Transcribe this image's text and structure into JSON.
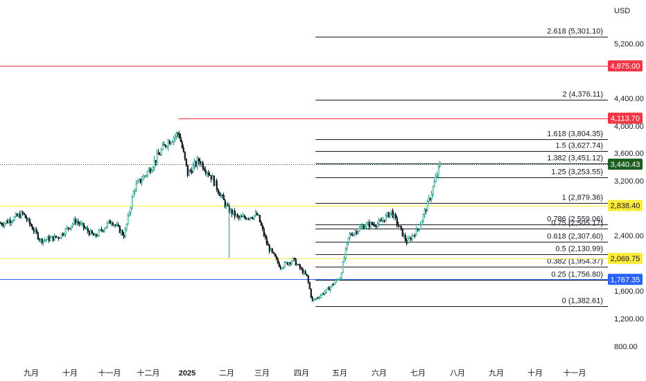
{
  "chart_data": {
    "type": "candlestick",
    "currency": "USD",
    "y_axis": {
      "ticks": [
        "5,200.00",
        "4,400.00",
        "4,000.00",
        "3,600.00",
        "3,200.00",
        "2,400.00",
        "1,600.00",
        "1,200.00",
        "800.00"
      ],
      "tick_values": [
        5200,
        4400,
        4000,
        3600,
        3200,
        2400,
        1600,
        1200,
        800
      ]
    },
    "x_axis": {
      "labels": [
        "九月",
        "十月",
        "十一月",
        "十二月",
        "2025",
        "二月",
        "三月",
        "四月",
        "五月",
        "六月",
        "七月",
        "八月",
        "九月",
        "十月",
        "十一月"
      ],
      "bold_label": "2025"
    },
    "horizontal_levels": [
      {
        "price": 4875.0,
        "label": "4,875.00",
        "color": "#f23645",
        "text_color": "#ffffff"
      },
      {
        "price": 4113.7,
        "label": "4,113.70",
        "color": "#f23645",
        "text_color": "#ffffff"
      },
      {
        "price": 2838.4,
        "label": "2,838.40",
        "color": "#ffeb3b",
        "text_color": "#131722"
      },
      {
        "price": 2069.75,
        "label": "2,069.75",
        "color": "#ffeb3b",
        "text_color": "#131722"
      },
      {
        "price": 1767.35,
        "label": "1,767.35",
        "color": "#2962ff",
        "text_color": "#ffffff"
      }
    ],
    "last_price": {
      "price": 3440.43,
      "label": "3,440.43",
      "color": "#1b5e20",
      "text_color": "#ffffff"
    },
    "fibonacci": [
      {
        "ratio": "2.618",
        "price": 5301.1,
        "label": "2.618 (5,301.10)"
      },
      {
        "ratio": "2",
        "price": 4376.11,
        "label": "2 (4,376.11)"
      },
      {
        "ratio": "1.618",
        "price": 3804.35,
        "label": "1.618 (3,804.35)"
      },
      {
        "ratio": "1.5",
        "price": 3627.74,
        "label": "1.5 (3,627.74)"
      },
      {
        "ratio": "1.382",
        "price": 3451.12,
        "label": "1.382 (3,451.12)"
      },
      {
        "ratio": "1.25",
        "price": 3253.55,
        "label": "1.25 (3,253.55)"
      },
      {
        "ratio": "1",
        "price": 2879.36,
        "label": "1 (2,879.36)"
      },
      {
        "ratio": "0.786",
        "price": 2559.06,
        "label": "0.786 (2,559.06)"
      },
      {
        "ratio": "0.75",
        "price": 2505.17,
        "label": "0.75 (2,505.17)"
      },
      {
        "ratio": "0.618",
        "price": 2307.6,
        "label": "0.618 (2,307.60)"
      },
      {
        "ratio": "0.5",
        "price": 2130.99,
        "label": "0.5 (2,130.99)"
      },
      {
        "ratio": "0.382",
        "price": 1954.37,
        "label": "0.382 (1,954.37)"
      },
      {
        "ratio": "0.25",
        "price": 1756.8,
        "label": "0.25 (1,756.80)"
      },
      {
        "ratio": "0",
        "price": 1382.61,
        "label": "0 (1,382.61)"
      }
    ],
    "price_path": [
      {
        "date": "2024-08-10",
        "price": 2580
      },
      {
        "date": "2024-08-25",
        "price": 2720
      },
      {
        "date": "2024-09-08",
        "price": 2330
      },
      {
        "date": "2024-09-22",
        "price": 2380
      },
      {
        "date": "2024-10-05",
        "price": 2620
      },
      {
        "date": "2024-10-20",
        "price": 2380
      },
      {
        "date": "2024-11-02",
        "price": 2620
      },
      {
        "date": "2024-11-12",
        "price": 2400
      },
      {
        "date": "2024-11-20",
        "price": 3100
      },
      {
        "date": "2024-12-01",
        "price": 3350
      },
      {
        "date": "2024-12-15",
        "price": 3750
      },
      {
        "date": "2024-12-25",
        "price": 3900
      },
      {
        "date": "2025-01-01",
        "price": 3300
      },
      {
        "date": "2025-01-10",
        "price": 3500
      },
      {
        "date": "2025-01-20",
        "price": 3250
      },
      {
        "date": "2025-02-01",
        "price": 2800
      },
      {
        "date": "2025-02-10",
        "price": 2650
      },
      {
        "date": "2025-02-25",
        "price": 2700
      },
      {
        "date": "2025-03-05",
        "price": 2250
      },
      {
        "date": "2025-03-15",
        "price": 1950
      },
      {
        "date": "2025-03-25",
        "price": 2050
      },
      {
        "date": "2025-04-05",
        "price": 1800
      },
      {
        "date": "2025-04-09",
        "price": 1450
      },
      {
        "date": "2025-04-20",
        "price": 1600
      },
      {
        "date": "2025-05-01",
        "price": 1800
      },
      {
        "date": "2025-05-08",
        "price": 2400
      },
      {
        "date": "2025-05-20",
        "price": 2550
      },
      {
        "date": "2025-06-01",
        "price": 2580
      },
      {
        "date": "2025-06-10",
        "price": 2750
      },
      {
        "date": "2025-06-22",
        "price": 2300
      },
      {
        "date": "2025-07-01",
        "price": 2500
      },
      {
        "date": "2025-07-10",
        "price": 2950
      },
      {
        "date": "2025-07-18",
        "price": 3440
      }
    ]
  }
}
